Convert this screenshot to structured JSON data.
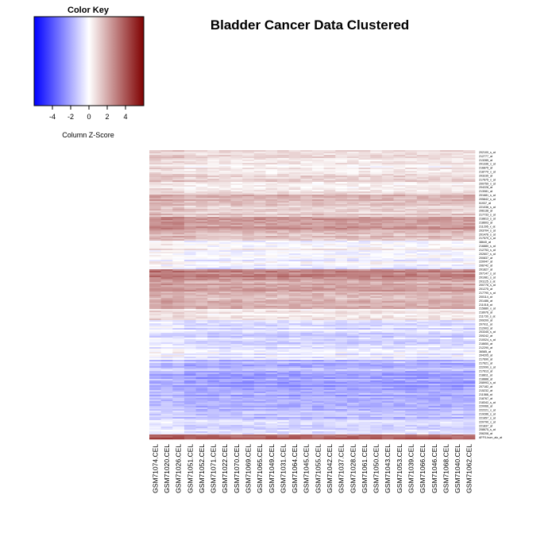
{
  "title": "Bladder Cancer Data Clustered",
  "colors": {
    "low": "#0000ff",
    "mid": "#ffffff",
    "high": "#7f0000"
  },
  "color_key": {
    "title": "Color Key",
    "xlabel": "Column Z-Score",
    "range": [
      -6,
      6
    ],
    "ticks": [
      {
        "label": "-4",
        "value": -4
      },
      {
        "label": "-2",
        "value": -2
      },
      {
        "label": "0",
        "value": 0
      },
      {
        "label": "2",
        "value": 2
      },
      {
        "label": "4",
        "value": 4
      }
    ]
  },
  "chart_data": {
    "type": "heatmap",
    "title": "Bladder Cancer Data Clustered",
    "columns": [
      "GSM71074.CEL",
      "GSM71020.CEL",
      "GSM71026.CEL",
      "GSM71051.CEL",
      "GSM71052.CEL",
      "GSM71071.CEL",
      "GSM71022.CEL",
      "GSM71070.CEL",
      "GSM71069.CEL",
      "GSM71065.CEL",
      "GSM71049.CEL",
      "GSM71031.CEL",
      "GSM71064.CEL",
      "GSM71045.CEL",
      "GSM71055.CEL",
      "GSM71042.CEL",
      "GSM71037.CEL",
      "GSM71028.CEL",
      "GSM71061.CEL",
      "GSM71050.CEL",
      "GSM71043.CEL",
      "GSM71053.CEL",
      "GSM71039.CEL",
      "GSM71066.CEL",
      "GSM71046.CEL",
      "GSM71068.CEL",
      "GSM71040.CEL",
      "GSM71062.CEL"
    ],
    "row_band_profile": [
      {
        "from": 0,
        "to": 10,
        "z": 0.8
      },
      {
        "from": 10,
        "to": 30,
        "z": 0.6
      },
      {
        "from": 30,
        "to": 40,
        "z": 0.9
      },
      {
        "from": 40,
        "to": 55,
        "z": 0.4
      },
      {
        "from": 55,
        "to": 70,
        "z": 1.5
      },
      {
        "from": 70,
        "to": 85,
        "z": 1.1
      },
      {
        "from": 85,
        "to": 100,
        "z": 2.4
      },
      {
        "from": 100,
        "to": 115,
        "z": 1.6
      },
      {
        "from": 115,
        "to": 130,
        "z": 0.1
      },
      {
        "from": 130,
        "to": 150,
        "z": -0.4
      },
      {
        "from": 150,
        "to": 165,
        "z": 2.8
      },
      {
        "from": 165,
        "to": 180,
        "z": 2.0
      },
      {
        "from": 180,
        "to": 200,
        "z": 1.6
      },
      {
        "from": 200,
        "to": 215,
        "z": 0.3
      },
      {
        "from": 215,
        "to": 235,
        "z": -0.8
      },
      {
        "from": 235,
        "to": 250,
        "z": -1.1
      },
      {
        "from": 250,
        "to": 265,
        "z": -0.4
      },
      {
        "from": 265,
        "to": 280,
        "z": -1.6
      },
      {
        "from": 280,
        "to": 300,
        "z": -2.3
      },
      {
        "from": 300,
        "to": 320,
        "z": -2.0
      },
      {
        "from": 320,
        "to": 340,
        "z": -1.5
      },
      {
        "from": 340,
        "to": 358,
        "z": -0.9
      },
      {
        "from": 358,
        "to": 364,
        "z": 3.5
      }
    ],
    "row_labels": [
      "202100_s_at",
      "212777_at",
      "213285_at",
      "201336_x_at",
      "216875_at",
      "218779_x_at",
      "203235_at",
      "217675_x_at",
      "200759_x_at",
      "204228_at",
      "213081_at",
      "201681_s_at",
      "205842_s_at",
      "51937_at",
      "221036_s_at",
      "206138_at",
      "217733_s_at",
      "218813_s_at",
      "218603_at",
      "211295_x_at",
      "203704_s_at",
      "201476_s_at",
      "217579_x_at",
      "38640_at",
      "216880_s_at",
      "212753_s_at",
      "202607_s_at",
      "200837_at",
      "220047_at",
      "206742_at",
      "201827_at",
      "207147_s_at",
      "201981_s_at",
      "201125_s_at",
      "200776_s_at",
      "201275_at",
      "217790_s_at",
      "200114_at",
      "201486_at",
      "211018_at",
      "215880_x_at",
      "218976_at",
      "211730_s_at",
      "209209_at",
      "207911_at",
      "212903_at",
      "203345_s_at",
      "209242_at",
      "210024_s_at",
      "218650_at",
      "212290_at",
      "36585_at",
      "204205_at",
      "217690_at",
      "217621_at",
      "222099_s_at",
      "217613_at",
      "218811_at",
      "218888_at",
      "208993_s_at",
      "207182_at",
      "215232_at",
      "211588_at",
      "218767_at",
      "218342_s_at",
      "220066_at",
      "222221_x_at",
      "219286_s_at",
      "221657_s_at",
      "220790_x_at",
      "221837_at",
      "208675_s_at",
      "206208_at",
      "AFFX-hum_alu_at"
    ]
  }
}
